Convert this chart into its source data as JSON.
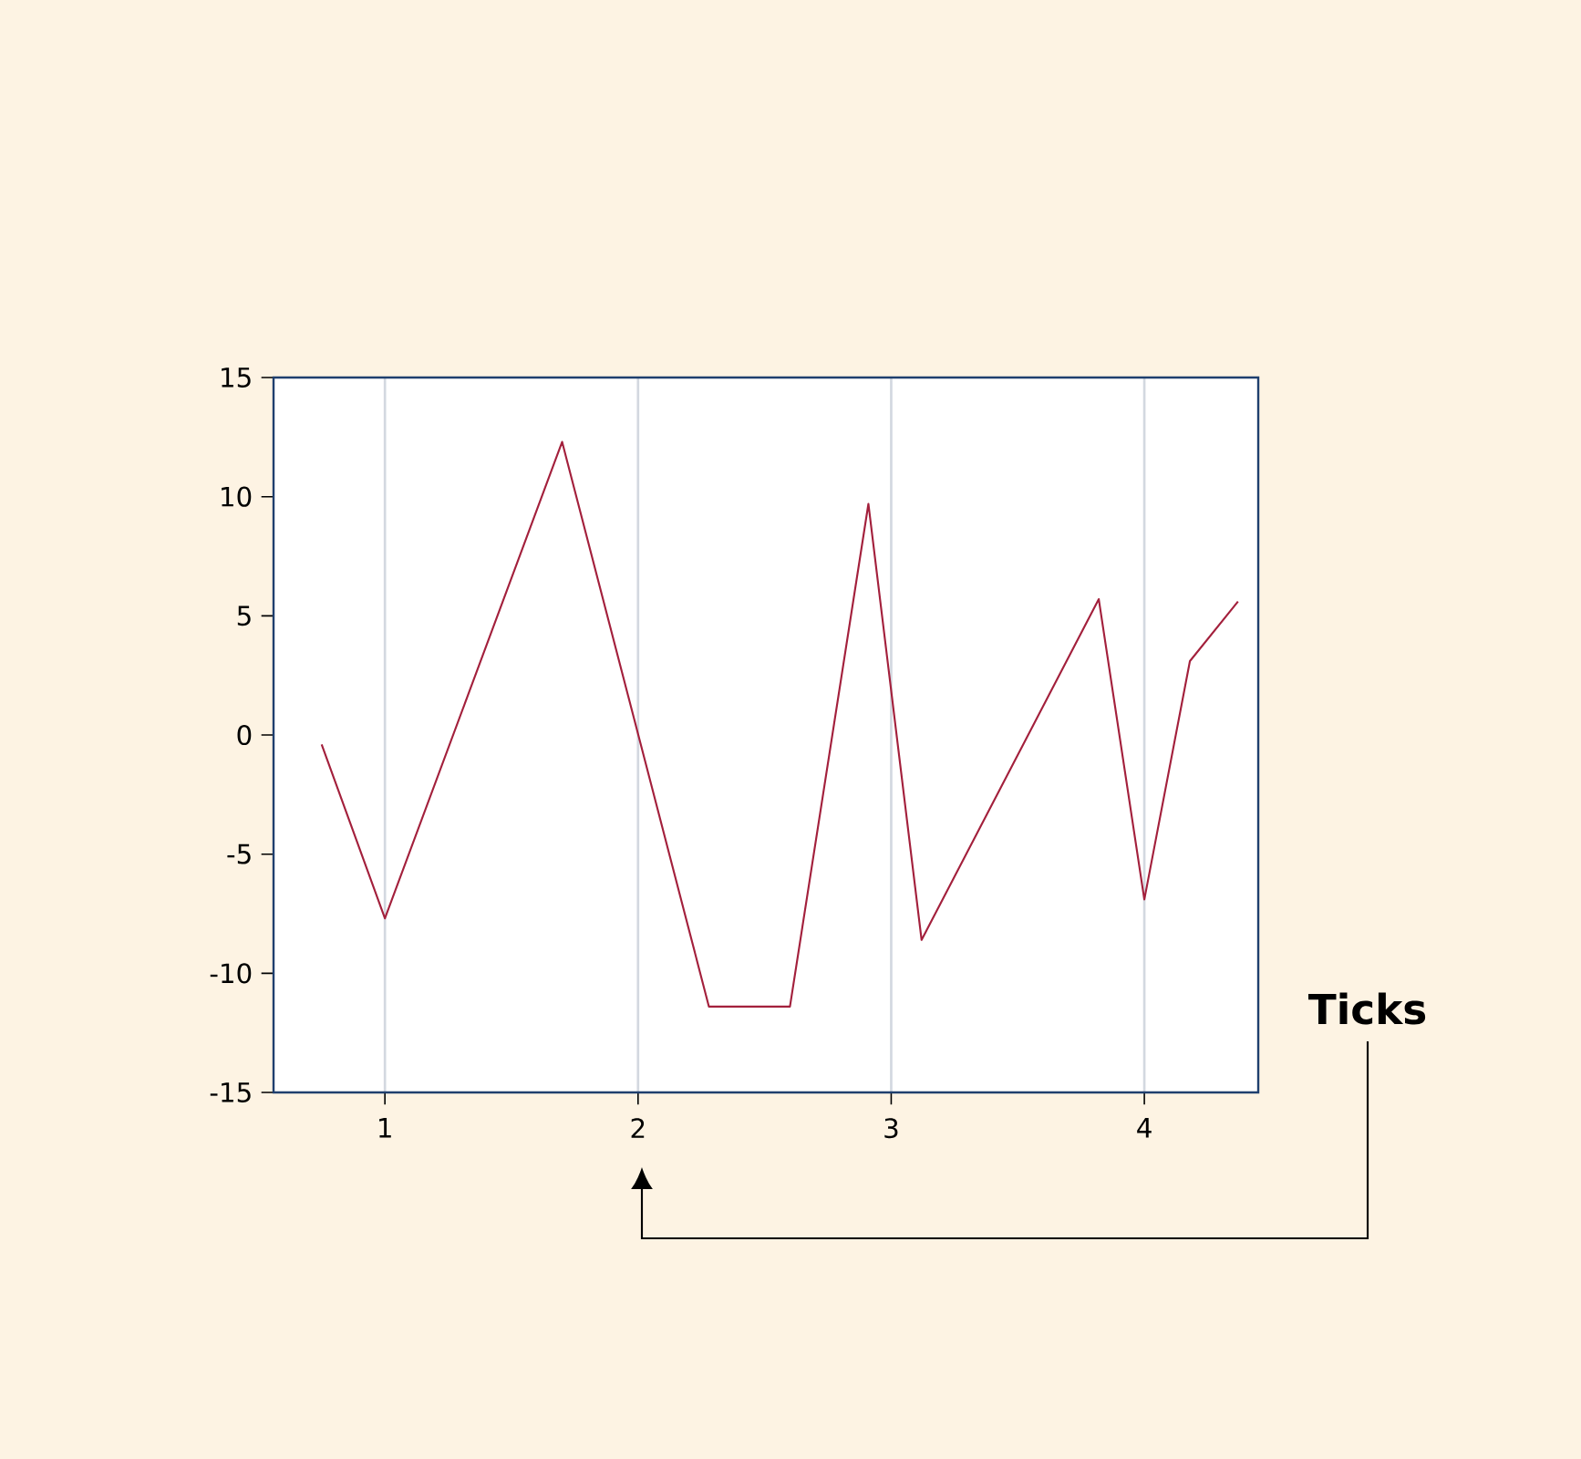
{
  "chart_data": {
    "type": "line",
    "x": [
      0.75,
      1.0,
      1.7,
      2.28,
      2.6,
      2.91,
      3.12,
      3.82,
      4.0,
      4.18,
      4.37
    ],
    "series": [
      {
        "color": "#a3203c",
        "values": [
          -0.4,
          -7.7,
          12.3,
          -11.4,
          -11.4,
          9.7,
          -8.6,
          5.7,
          -6.9,
          3.1,
          5.6
        ]
      }
    ],
    "xlim": [
      0.56,
      4.45
    ],
    "ylim": [
      -15,
      15
    ],
    "xticks": [
      1,
      2,
      3,
      4
    ],
    "yticks": [
      -15,
      -10,
      -5,
      0,
      5,
      10,
      15
    ],
    "grid": "x",
    "marker": "none",
    "line_style": "solid",
    "annotations": [
      "Ticks"
    ]
  }
}
